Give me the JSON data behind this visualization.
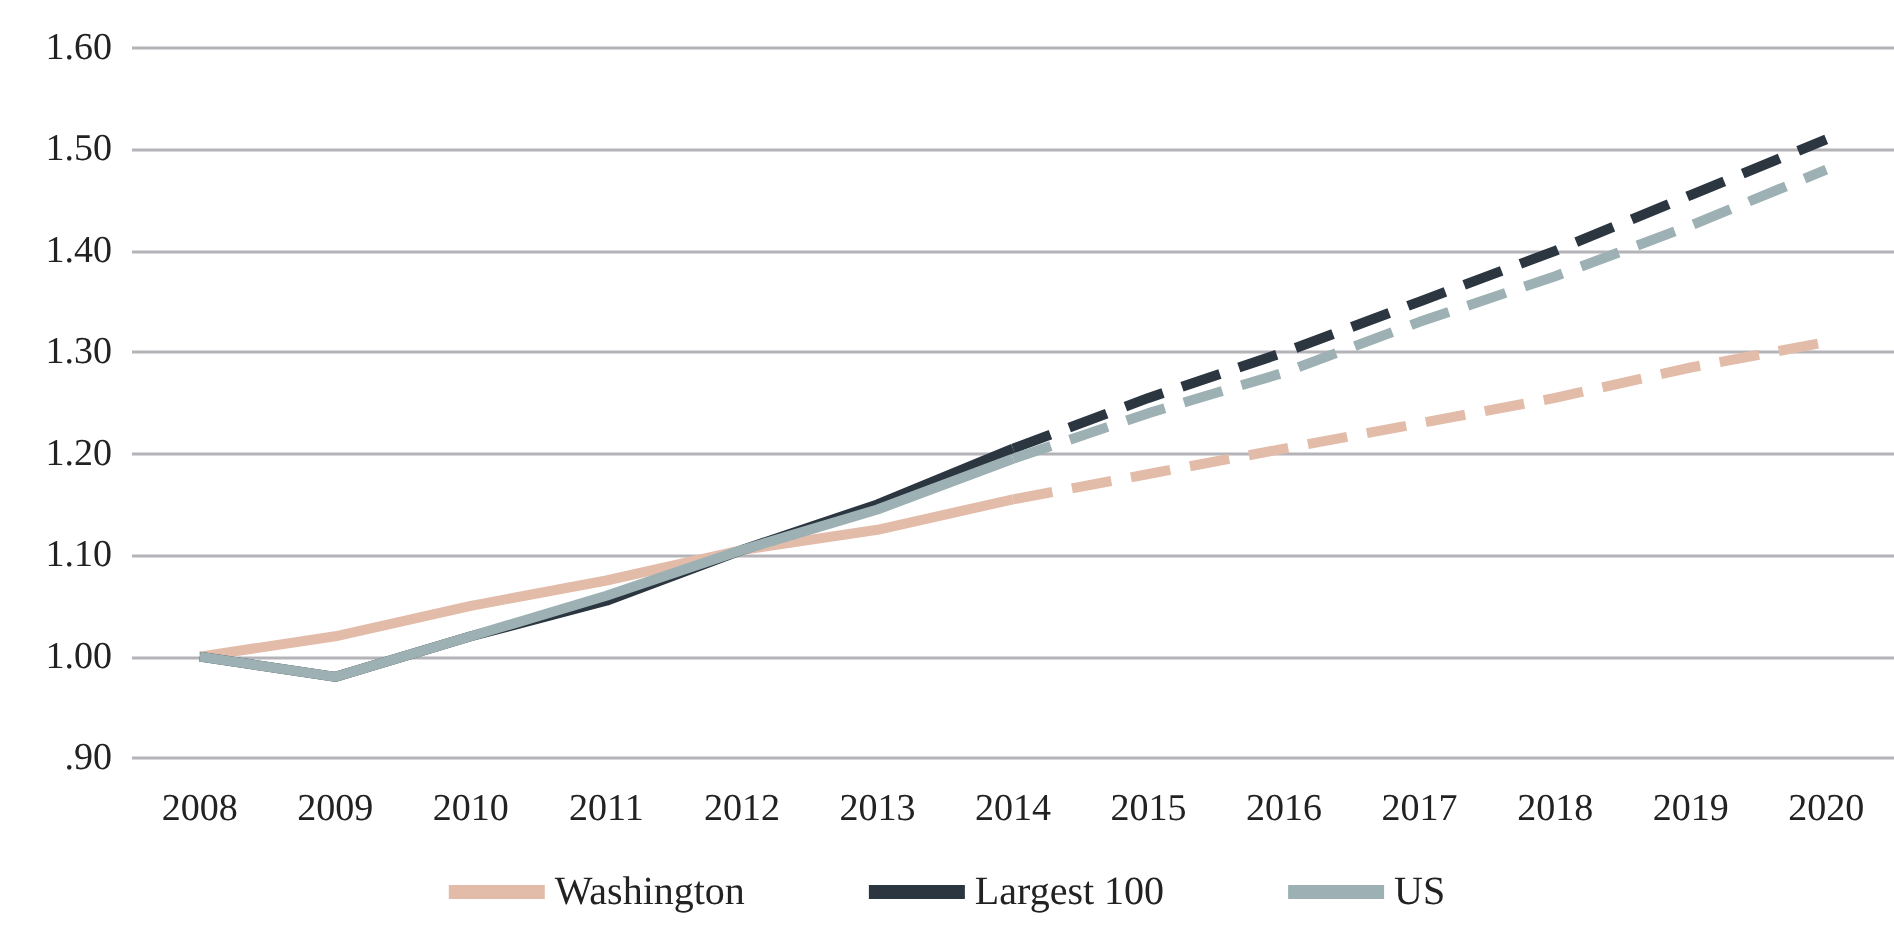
{
  "chart_data": {
    "type": "line",
    "categories": [
      "2008",
      "2009",
      "2010",
      "2011",
      "2012",
      "2013",
      "2014",
      "2015",
      "2016",
      "2017",
      "2018",
      "2019",
      "2020"
    ],
    "series": [
      {
        "name": "Washington",
        "color": "#e2bca9",
        "line_style": "solid",
        "values": [
          1.0,
          1.02,
          1.05,
          1.075,
          1.105,
          1.125,
          1.155,
          null,
          null,
          null,
          null,
          null,
          null
        ]
      },
      {
        "name": "Largest 100",
        "color": "#2b3640",
        "line_style": "solid",
        "values": [
          1.0,
          0.98,
          1.02,
          1.055,
          1.105,
          1.15,
          1.205,
          null,
          null,
          null,
          null,
          null,
          null
        ]
      },
      {
        "name": "US",
        "color": "#9db1b4",
        "line_style": "solid",
        "values": [
          1.0,
          0.98,
          1.02,
          1.06,
          1.105,
          1.145,
          1.195,
          null,
          null,
          null,
          null,
          null,
          null
        ]
      },
      {
        "color": "#e2bca9",
        "line_style": "dashed",
        "values": [
          null,
          null,
          null,
          null,
          null,
          null,
          1.155,
          1.18,
          1.205,
          1.23,
          1.255,
          1.285,
          1.31
        ]
      },
      {
        "color": "#2b3640",
        "line_style": "dashed",
        "values": [
          null,
          null,
          null,
          null,
          null,
          null,
          1.205,
          1.255,
          1.3,
          1.35,
          1.4,
          1.455,
          1.51
        ]
      },
      {
        "color": "#9db1b4",
        "line_style": "dashed",
        "values": [
          null,
          null,
          null,
          null,
          null,
          null,
          1.195,
          1.24,
          1.28,
          1.33,
          1.375,
          1.425,
          1.48
        ]
      }
    ],
    "ylim": [
      0.9,
      1.6
    ],
    "yticks": [
      {
        "value": 0.9,
        "label": ".90"
      },
      {
        "value": 1.0,
        "label": "1.00"
      },
      {
        "value": 1.1,
        "label": "1.10"
      },
      {
        "value": 1.2,
        "label": "1.20"
      },
      {
        "value": 1.3,
        "label": "1.30"
      },
      {
        "value": 1.4,
        "label": "1.40"
      },
      {
        "value": 1.5,
        "label": "1.50"
      },
      {
        "value": 1.6,
        "label": "1.60"
      }
    ],
    "grid": "y",
    "legend": "bottom"
  }
}
